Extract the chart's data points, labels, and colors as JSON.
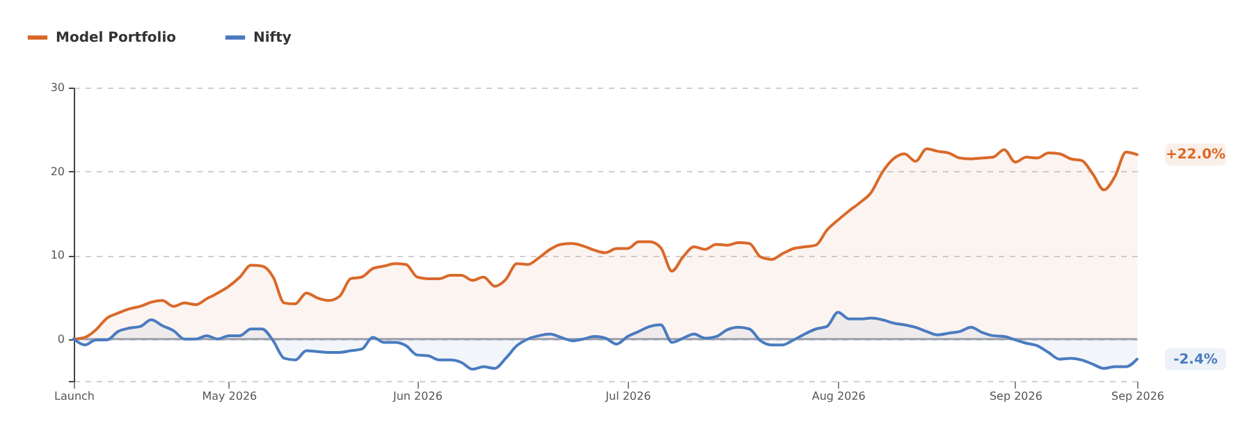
{
  "chart_data": {
    "type": "area",
    "legend": "top left",
    "grid": "y",
    "marker": "none",
    "line_style": "solid",
    "categories": [
      "Launch",
      null,
      null,
      null,
      null,
      null,
      null,
      null,
      null,
      null,
      null,
      null,
      null,
      null,
      "May 2026",
      null,
      null,
      null,
      null,
      null,
      null,
      null,
      null,
      null,
      null,
      null,
      null,
      null,
      null,
      null,
      null,
      "Jun 2026",
      null,
      null,
      null,
      null,
      null,
      null,
      null,
      null,
      null,
      null,
      null,
      null,
      null,
      null,
      null,
      null,
      null,
      null,
      "Jul 2026",
      null,
      null,
      null,
      null,
      null,
      null,
      null,
      null,
      null,
      null,
      null,
      null,
      null,
      null,
      null,
      null,
      null,
      null,
      "Aug 2026",
      null,
      null,
      null,
      null,
      null,
      null,
      null,
      null,
      null,
      null,
      null,
      null,
      null,
      null,
      null,
      "Sep 2026",
      null,
      null,
      null,
      null,
      null,
      null,
      null,
      null,
      null,
      null,
      "Sep 2026"
    ],
    "ylim": [
      -5,
      30
    ],
    "yticks": [
      {
        "value": -5,
        "label": null
      },
      0,
      10,
      20,
      30
    ],
    "ref_lines": [
      {
        "axis": "y",
        "value": 0,
        "color": "#9aa0ad"
      }
    ],
    "annotations": [
      "+22.0%",
      "-2.4%"
    ],
    "series": [
      {
        "name": "Model Portfolio",
        "color": "#d9692a",
        "values": [
          0,
          0.2,
          1.1,
          2.5,
          3.1,
          3.6,
          3.9,
          4.4,
          4.6,
          3.9,
          4.3,
          4.1,
          4.8,
          5.5,
          6.3,
          7.4,
          8.8,
          8.7,
          7.4,
          4.3,
          4.2,
          5.5,
          4.9,
          4.6,
          5.1,
          7.2,
          7.4,
          8.4,
          8.7,
          9,
          8.9,
          7.4,
          7.2,
          7.2,
          7.6,
          7.6,
          7.0,
          7.4,
          6.3,
          7.1,
          9.0,
          8.9,
          9.7,
          10.7,
          11.3,
          11.4,
          11.1,
          10.6,
          10.3,
          10.8,
          10.8,
          11.6,
          11.6,
          10.9,
          8.1,
          9.8,
          11.0,
          10.7,
          11.3,
          11.2,
          11.5,
          11.4,
          9.8,
          9.5,
          10.2,
          10.8,
          11.0,
          11.2,
          13.0,
          14.2,
          15.3,
          16.3,
          17.5,
          19.9,
          21.5,
          22.1,
          21.2,
          22.7,
          22.4,
          22.2,
          21.6,
          21.5,
          21.6,
          21.7,
          22.6,
          21.1,
          21.7,
          21.6,
          22.2,
          22.1,
          21.5,
          21.3,
          19.7,
          17.8,
          19.4,
          22.3,
          22.0
        ]
      },
      {
        "name": "Nifty",
        "color": "#4a7bbf",
        "values": [
          0,
          -0.7,
          -0.1,
          -0.1,
          0.9,
          1.3,
          1.5,
          2.3,
          1.6,
          1.0,
          0.0,
          0.0,
          0.4,
          0.0,
          0.4,
          0.4,
          1.2,
          1.2,
          -0.2,
          -2.3,
          -2.5,
          -1.4,
          -1.5,
          -1.6,
          -1.6,
          -1.4,
          -1.2,
          0.2,
          -0.4,
          -0.4,
          -0.8,
          -1.9,
          -2.0,
          -2.5,
          -2.5,
          -2.8,
          -3.6,
          -3.3,
          -3.5,
          -2.3,
          -0.8,
          0.0,
          0.4,
          0.6,
          0.2,
          -0.2,
          0.0,
          0.3,
          0.1,
          -0.6,
          0.3,
          0.9,
          1.5,
          1.7,
          -0.4,
          0.1,
          0.6,
          0.1,
          0.3,
          1.1,
          1.4,
          1.2,
          -0.2,
          -0.7,
          -0.7,
          -0.1,
          0.6,
          1.2,
          1.5,
          3.2,
          2.4,
          2.4,
          2.5,
          2.3,
          1.9,
          1.7,
          1.4,
          0.9,
          0.5,
          0.7,
          0.9,
          1.4,
          0.8,
          0.4,
          0.3,
          -0.1,
          -0.5,
          -0.8,
          -1.6,
          -2.4,
          -2.3,
          -2.5,
          -3.0,
          -3.5,
          -3.3,
          -3.3,
          -2.4
        ]
      }
    ]
  }
}
